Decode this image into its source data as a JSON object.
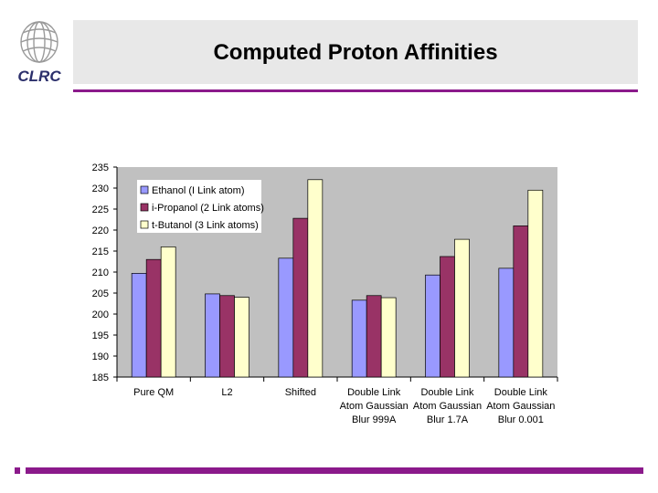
{
  "header": {
    "logo_text": "CLRC",
    "title": "Computed Proton Affinities"
  },
  "colors": {
    "accent": "#8b1a8b",
    "plot_background": "#c0c0c0",
    "series": [
      "#9999ff",
      "#993366",
      "#ffffcc"
    ]
  },
  "chart_data": {
    "type": "bar",
    "title": "",
    "xlabel": "",
    "ylabel": "",
    "ylim": [
      185,
      235
    ],
    "yticks": [
      185,
      190,
      195,
      200,
      205,
      210,
      215,
      220,
      225,
      230,
      235
    ],
    "grid": false,
    "legend_position": "top-left",
    "categories": [
      [
        "Pure QM"
      ],
      [
        "L2"
      ],
      [
        "Shifted"
      ],
      [
        "Double Link",
        "Atom Gaussian",
        "Blur 999A"
      ],
      [
        "Double Link",
        "Atom Gaussian",
        "Blur 1.7A"
      ],
      [
        "Double Link",
        "Atom Gaussian",
        "Blur 0.001"
      ]
    ],
    "series": [
      {
        "name": "Ethanol (I Link atom)",
        "values": [
          209.7,
          204.8,
          213.3,
          203.3,
          209.3,
          210.9
        ]
      },
      {
        "name": "i-Propanol (2 Link atoms)",
        "values": [
          213.0,
          204.4,
          222.8,
          204.4,
          213.7,
          221.0
        ]
      },
      {
        "name": "t-Butanol (3 Link atoms)",
        "values": [
          216.0,
          204.0,
          232.0,
          203.9,
          217.8,
          229.5
        ]
      }
    ]
  }
}
